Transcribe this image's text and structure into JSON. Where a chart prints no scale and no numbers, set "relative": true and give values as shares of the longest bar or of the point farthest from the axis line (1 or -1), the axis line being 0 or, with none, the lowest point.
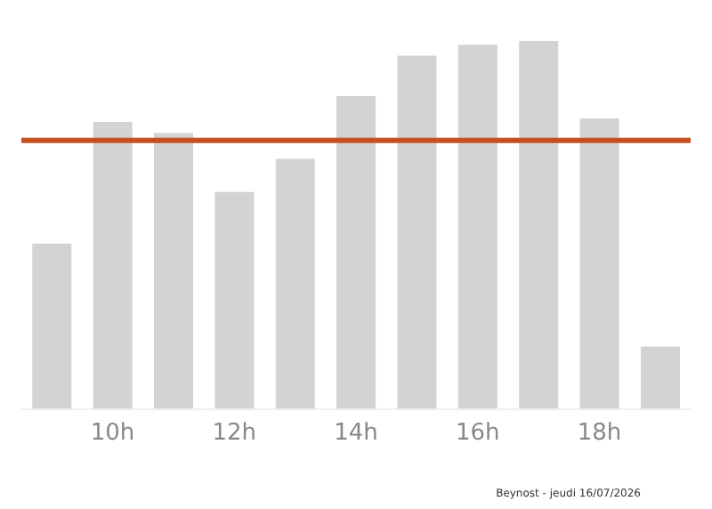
{
  "chart_data": {
    "type": "bar",
    "relative": true,
    "categories": [
      null,
      "10h",
      null,
      "12h",
      null,
      "14h",
      null,
      "16h",
      null,
      "18h",
      null
    ],
    "values": [
      0.45,
      0.78,
      0.75,
      0.59,
      0.68,
      0.85,
      0.96,
      0.99,
      1,
      0.79,
      0.17
    ],
    "color": "#d3d3d3",
    "ref_lines": [
      {
        "axis": "y",
        "value": 0.73,
        "color": "#c8501e"
      }
    ],
    "annotations": [
      "Beynost - jeudi 16/07/2026"
    ]
  }
}
